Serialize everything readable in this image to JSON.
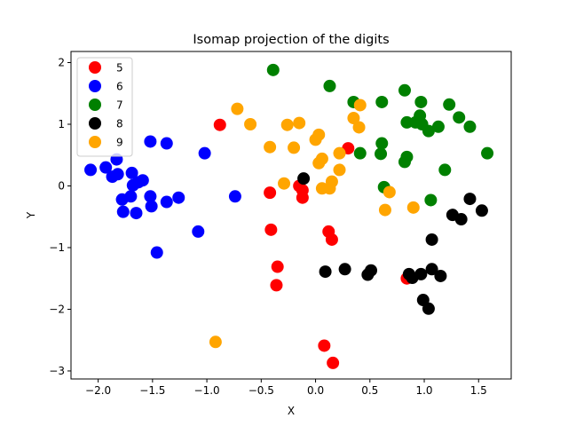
{
  "chart_data": {
    "type": "scatter",
    "title": "Isomap projection of the digits",
    "xlabel": "X",
    "ylabel": "Y",
    "xlim": [
      -2.25,
      1.8
    ],
    "ylim": [
      -3.13,
      2.18
    ],
    "xticks": [
      -2.0,
      -1.5,
      -1.0,
      -0.5,
      0.0,
      0.5,
      1.0,
      1.5
    ],
    "xtick_labels": [
      "−2.0",
      "−1.5",
      "−1.0",
      "−0.5",
      "0.0",
      "0.5",
      "1.0",
      "1.5"
    ],
    "yticks": [
      -3,
      -2,
      -1,
      0,
      1,
      2
    ],
    "ytick_labels": [
      "−3",
      "−2",
      "−1",
      "0",
      "1",
      "2"
    ],
    "grid": false,
    "legend_position": "top-left",
    "series": [
      {
        "name": "5",
        "color": "#ff0000",
        "points": [
          [
            -0.88,
            0.99
          ],
          [
            -0.42,
            -0.11
          ],
          [
            -0.41,
            -0.71
          ],
          [
            -0.35,
            -1.31
          ],
          [
            -0.36,
            -1.61
          ],
          [
            -0.15,
            0.0
          ],
          [
            -0.12,
            -0.07
          ],
          [
            -0.12,
            -0.19
          ],
          [
            0.12,
            -0.74
          ],
          [
            0.15,
            -0.87
          ],
          [
            0.3,
            0.61
          ],
          [
            0.08,
            -2.59
          ],
          [
            0.16,
            -2.87
          ],
          [
            0.84,
            -1.5
          ]
        ]
      },
      {
        "name": "6",
        "color": "#0000ff",
        "points": [
          [
            -2.07,
            0.26
          ],
          [
            -1.93,
            0.3
          ],
          [
            -1.83,
            0.43
          ],
          [
            -1.87,
            0.15
          ],
          [
            -1.82,
            0.19
          ],
          [
            -1.78,
            -0.22
          ],
          [
            -1.77,
            -0.42
          ],
          [
            -1.7,
            -0.17
          ],
          [
            -1.69,
            0.21
          ],
          [
            -1.68,
            0.01
          ],
          [
            -1.63,
            0.06
          ],
          [
            -1.59,
            0.09
          ],
          [
            -1.65,
            -0.44
          ],
          [
            -1.52,
            0.72
          ],
          [
            -1.52,
            -0.17
          ],
          [
            -1.51,
            -0.33
          ],
          [
            -1.37,
            0.69
          ],
          [
            -1.37,
            -0.26
          ],
          [
            -1.26,
            -0.19
          ],
          [
            -1.46,
            -1.08
          ],
          [
            -1.02,
            0.53
          ],
          [
            -1.08,
            -0.74
          ],
          [
            -0.74,
            -0.17
          ]
        ]
      },
      {
        "name": "7",
        "color": "#008000",
        "points": [
          [
            -0.39,
            1.88
          ],
          [
            0.13,
            1.62
          ],
          [
            0.35,
            1.36
          ],
          [
            0.41,
            0.53
          ],
          [
            0.61,
            1.36
          ],
          [
            0.61,
            0.69
          ],
          [
            0.6,
            0.52
          ],
          [
            0.63,
            -0.02
          ],
          [
            0.82,
            1.55
          ],
          [
            0.84,
            1.03
          ],
          [
            0.84,
            0.47
          ],
          [
            0.82,
            0.39
          ],
          [
            0.92,
            1.03
          ],
          [
            0.96,
            1.14
          ],
          [
            0.97,
            1.36
          ],
          [
            0.98,
            1.0
          ],
          [
            1.04,
            0.89
          ],
          [
            1.06,
            -0.23
          ],
          [
            1.13,
            0.96
          ],
          [
            1.19,
            0.26
          ],
          [
            1.23,
            1.32
          ],
          [
            1.32,
            1.11
          ],
          [
            1.42,
            0.96
          ],
          [
            1.58,
            0.53
          ]
        ]
      },
      {
        "name": "8",
        "color": "#000000",
        "points": [
          [
            -0.11,
            0.12
          ],
          [
            0.09,
            -1.39
          ],
          [
            0.27,
            -1.35
          ],
          [
            0.48,
            -1.44
          ],
          [
            0.51,
            -1.37
          ],
          [
            0.86,
            -1.43
          ],
          [
            0.89,
            -1.49
          ],
          [
            0.97,
            -1.43
          ],
          [
            0.99,
            -1.85
          ],
          [
            1.04,
            -1.99
          ],
          [
            1.07,
            -0.87
          ],
          [
            1.07,
            -1.35
          ],
          [
            1.15,
            -1.46
          ],
          [
            1.26,
            -0.47
          ],
          [
            1.34,
            -0.54
          ],
          [
            1.42,
            -0.21
          ],
          [
            1.53,
            -0.4
          ]
        ]
      },
      {
        "name": "9",
        "color": "#ffa500",
        "points": [
          [
            -0.72,
            1.25
          ],
          [
            -0.6,
            1.0
          ],
          [
            -0.42,
            0.63
          ],
          [
            -0.26,
            0.99
          ],
          [
            -0.2,
            0.62
          ],
          [
            -0.29,
            0.04
          ],
          [
            -0.15,
            1.02
          ],
          [
            0.0,
            0.75
          ],
          [
            0.03,
            0.83
          ],
          [
            0.03,
            0.37
          ],
          [
            0.06,
            0.44
          ],
          [
            0.06,
            -0.04
          ],
          [
            0.13,
            -0.04
          ],
          [
            0.15,
            0.07
          ],
          [
            0.22,
            0.26
          ],
          [
            0.22,
            0.53
          ],
          [
            0.35,
            1.1
          ],
          [
            0.41,
            1.31
          ],
          [
            0.4,
            0.95
          ],
          [
            0.64,
            -0.39
          ],
          [
            0.68,
            -0.1
          ],
          [
            0.9,
            -0.35
          ],
          [
            -0.92,
            -2.53
          ]
        ]
      }
    ]
  }
}
